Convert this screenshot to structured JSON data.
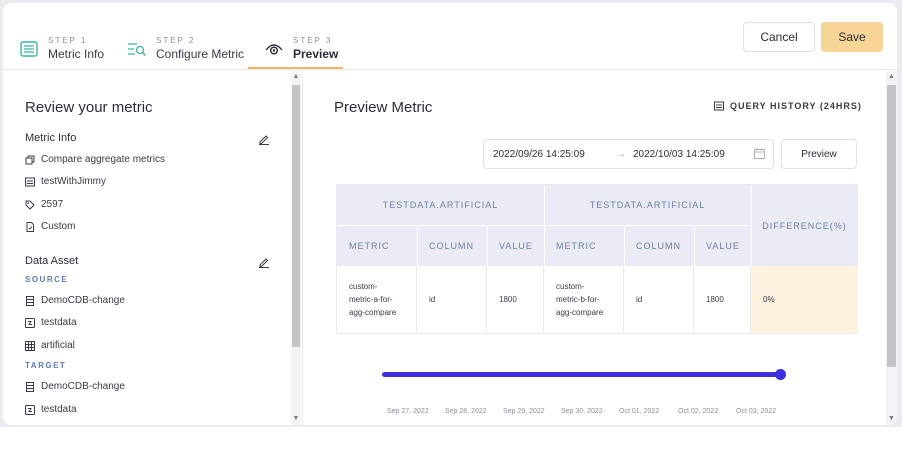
{
  "steps": [
    {
      "label": "STEP 1",
      "name": "Metric Info",
      "icon": "list-icon"
    },
    {
      "label": "STEP 2",
      "name": "Configure Metric",
      "icon": "filter-search-icon"
    },
    {
      "label": "STEP 3",
      "name": "Preview",
      "icon": "eye-icon"
    }
  ],
  "actions": {
    "cancel": "Cancel",
    "save": "Save"
  },
  "review": {
    "title": "Review your metric",
    "metric_info_title": "Metric Info",
    "metric_info": [
      {
        "icon": "copy-icon",
        "text": "Compare aggregate metrics"
      },
      {
        "icon": "table-icon",
        "text": "testWithJimmy"
      },
      {
        "icon": "tag-icon",
        "text": "2597"
      },
      {
        "icon": "file-icon",
        "text": "Custom"
      }
    ],
    "data_asset_title": "Data Asset",
    "source_label": "SOURCE",
    "source": [
      {
        "icon": "database-icon",
        "text": "DemoCDB-change"
      },
      {
        "icon": "schema-icon",
        "text": "testdata"
      },
      {
        "icon": "grid-icon",
        "text": "artificial"
      }
    ],
    "target_label": "TARGET",
    "target": [
      {
        "icon": "database-icon",
        "text": "DemoCDB-change"
      },
      {
        "icon": "schema-icon",
        "text": "testdata"
      }
    ]
  },
  "preview": {
    "title": "Preview Metric",
    "query_history": "QUERY HISTORY (24HRS)",
    "start": "2022/09/26 14:25:09",
    "arrow": "→",
    "end": "2022/10/03 14:25:09",
    "preview_button": "Preview",
    "table": {
      "group_a": "TESTDATA.ARTIFICIAL",
      "group_b": "TESTDATA.ARTIFICIAL",
      "difference": "DIFFERENCE(%)",
      "cols_a": [
        "METRIC",
        "COLUMN",
        "VALUE"
      ],
      "cols_b": [
        "METRIC",
        "COLUMN",
        "VALUE"
      ],
      "row": {
        "metric_a": [
          "custom-",
          "metric-a-for-",
          "agg-compare"
        ],
        "column_a": "id",
        "value_a": "1800",
        "metric_b": [
          "custom-",
          "metric-b-for-",
          "agg-compare"
        ],
        "column_b": "id",
        "value_b": "1800",
        "difference": "0%"
      }
    },
    "timeline_ticks": [
      "Sep 27, 2022",
      "Sep 28, 2022",
      "Sep 29, 2022",
      "Sep 30, 2022",
      "Oct 01, 2022",
      "Oct 02, 2022",
      "Oct 03, 2022"
    ]
  },
  "colors": {
    "accent": "#f0b860",
    "save": "#f7d596",
    "timeline": "#3b2fe0",
    "diff_cell": "#fdf1e0"
  }
}
